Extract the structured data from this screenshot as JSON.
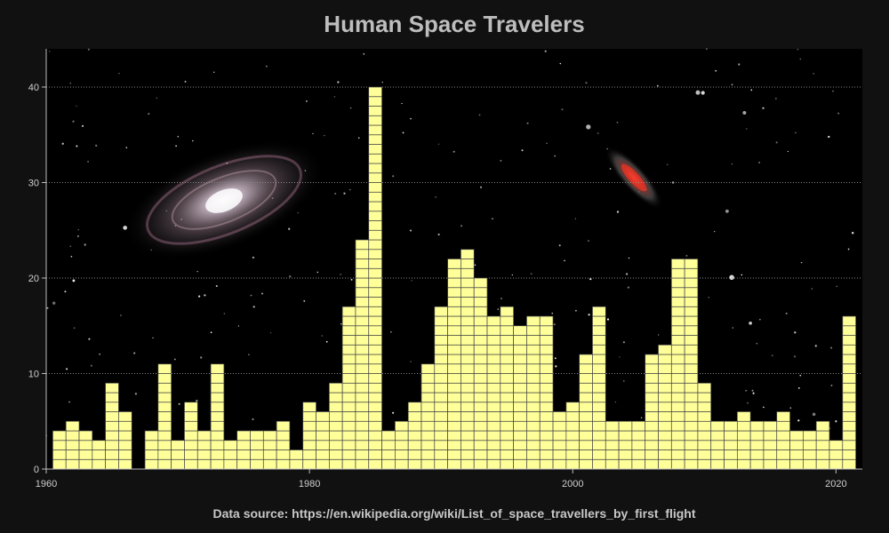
{
  "chart_data": {
    "type": "bar",
    "title": "Human Space Travelers",
    "xlabel": "",
    "ylabel": "",
    "xlim": [
      1960,
      2022
    ],
    "ylim": [
      0,
      44
    ],
    "x_ticks": [
      1960,
      1980,
      2000,
      2020
    ],
    "y_ticks": [
      0,
      10,
      20,
      30,
      40
    ],
    "grid": "horizontal dotted",
    "x": [
      1961,
      1962,
      1963,
      1964,
      1965,
      1966,
      1967,
      1968,
      1969,
      1970,
      1971,
      1972,
      1973,
      1974,
      1975,
      1976,
      1977,
      1978,
      1979,
      1980,
      1981,
      1982,
      1983,
      1984,
      1985,
      1986,
      1987,
      1988,
      1989,
      1990,
      1991,
      1992,
      1993,
      1994,
      1995,
      1996,
      1997,
      1998,
      1999,
      2000,
      2001,
      2002,
      2003,
      2004,
      2005,
      2006,
      2007,
      2008,
      2009,
      2010,
      2011,
      2012,
      2013,
      2014,
      2015,
      2016,
      2017,
      2018,
      2019,
      2020,
      2021
    ],
    "values": [
      4,
      5,
      4,
      3,
      9,
      6,
      0,
      4,
      11,
      3,
      7,
      4,
      11,
      3,
      4,
      4,
      4,
      5,
      2,
      7,
      6,
      9,
      17,
      24,
      40,
      4,
      5,
      7,
      11,
      17,
      22,
      23,
      20,
      16,
      17,
      15,
      16,
      16,
      6,
      7,
      12,
      17,
      5,
      5,
      5,
      12,
      13,
      22,
      22,
      9,
      5,
      5,
      6,
      5,
      5,
      6,
      4,
      4,
      5,
      3,
      16
    ],
    "bar_color": "#ffff99",
    "cell_border_color": "#444444"
  },
  "source_text": "Data source: https://en.wikipedia.org/wiki/List_of_space_travellers_by_first_flight",
  "colors": {
    "background": "#111111",
    "plot_background": "#000000",
    "title": "#bdbdbd",
    "tick_text": "#cfcfcf",
    "gridline": "#8a8a8a"
  }
}
